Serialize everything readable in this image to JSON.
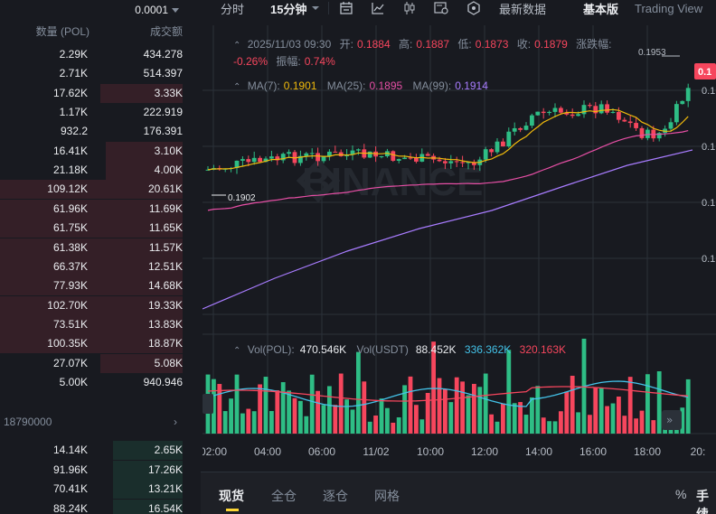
{
  "orderbook": {
    "precision": "0.0001",
    "col_amount": "数量 (POL)",
    "col_total": "成交额",
    "asks": [
      {
        "amount": "2.29K",
        "total": "434.278",
        "depth": 0.0
      },
      {
        "amount": "2.71K",
        "total": "514.397",
        "depth": 0.0
      },
      {
        "amount": "17.62K",
        "total": "3.33K",
        "depth": 0.45
      },
      {
        "amount": "1.17K",
        "total": "222.919",
        "depth": 0.0
      },
      {
        "amount": "932.2",
        "total": "176.391",
        "depth": 0.0
      },
      {
        "amount": "16.41K",
        "total": "3.10K",
        "depth": 0.42
      },
      {
        "amount": "21.18K",
        "total": "4.00K",
        "depth": 0.42
      },
      {
        "amount": "109.12K",
        "total": "20.61K",
        "depth": 1.0
      },
      {
        "amount": "61.96K",
        "total": "11.69K",
        "depth": 1.0
      },
      {
        "amount": "61.75K",
        "total": "11.65K",
        "depth": 1.0
      },
      {
        "amount": "61.38K",
        "total": "11.57K",
        "depth": 1.0
      },
      {
        "amount": "66.37K",
        "total": "12.51K",
        "depth": 1.0
      },
      {
        "amount": "77.93K",
        "total": "14.68K",
        "depth": 1.0
      },
      {
        "amount": "102.70K",
        "total": "19.33K",
        "depth": 1.0
      },
      {
        "amount": "73.51K",
        "total": "13.83K",
        "depth": 1.0
      },
      {
        "amount": "100.35K",
        "total": "18.87K",
        "depth": 1.0
      },
      {
        "amount": "27.07K",
        "total": "5.08K",
        "depth": 0.45
      },
      {
        "amount": "5.00K",
        "total": "940.946",
        "depth": 0.0
      }
    ],
    "mid_price": "18790000",
    "bids": [
      {
        "amount": "14.14K",
        "total": "2.65K",
        "depth": 0.38
      },
      {
        "amount": "91.96K",
        "total": "17.26K",
        "depth": 0.38
      },
      {
        "amount": "70.41K",
        "total": "13.21K",
        "depth": 0.38
      },
      {
        "amount": "88.24K",
        "total": "16.54K",
        "depth": 0.38
      }
    ]
  },
  "toolbar": {
    "time_label": "分时",
    "interval": "15分钟",
    "latest_price_label": "最新数据",
    "view_basic": "基本版",
    "view_tv": "Trading View"
  },
  "chart": {
    "ohlc": {
      "time": "2025/11/03 09:30",
      "open_label": "开:",
      "open": "0.1884",
      "high_label": "高:",
      "high": "0.1887",
      "low_label": "低:",
      "low": "0.1873",
      "close_label": "收:",
      "close": "0.1879",
      "change_label": "涨跌幅:",
      "change": "-0.26%",
      "amp_label": "振幅:",
      "amp": "0.74%"
    },
    "ma": [
      {
        "label": "MA(7):",
        "value": "0.1901",
        "color": "#f0b90b"
      },
      {
        "label": "MA(25):",
        "value": "0.1895",
        "color": "#e64fa5"
      },
      {
        "label": "MA(99):",
        "value": "0.1914",
        "color": "#a87cff"
      }
    ],
    "volume": {
      "pol_label": "Vol(POL):",
      "pol": "470.546K",
      "usdt_label": "Vol(USDT)",
      "usdt": "88.452K",
      "ma1": "336.362K",
      "ma1_color": "#43c2e8",
      "ma2": "320.163K",
      "ma2_color": "#f6465d"
    },
    "hi_mark": "0.1953",
    "lo_mark": "0.1902",
    "price_tag": "0.1",
    "axis_price_labels": [
      "0.1",
      "0.1",
      "0.1",
      "0.1"
    ],
    "x_labels": [
      "02:00",
      "04:00",
      "06:00",
      "11/02",
      "10:00",
      "12:00",
      "14:00",
      "16:00",
      "18:00",
      "20:"
    ],
    "watermark": "BINANCE",
    "colors": {
      "up": "#2ebd85",
      "down": "#f6465d",
      "grid": "#2b3139"
    }
  },
  "bottom_tabs": {
    "tabs": [
      "现货",
      "全仓",
      "逐仓",
      "网格"
    ],
    "percent": "%",
    "fee": "手续"
  },
  "chart_data": {
    "type": "candlestick",
    "interval": "15分钟",
    "x_ticks": [
      "02:00",
      "04:00",
      "06:00",
      "11/02",
      "10:00",
      "12:00",
      "14:00",
      "16:00",
      "18:00",
      "20:"
    ],
    "last_candle": {
      "time": "2025/11/03 09:30",
      "open": 0.1884,
      "high": 0.1887,
      "low": 0.1873,
      "close": 0.1879
    },
    "marked_high": 0.1953,
    "marked_low": 0.1902,
    "ma": {
      "MA(7)": 0.1901,
      "MA(25)": 0.1895,
      "MA(99)": 0.1914
    },
    "volume": {
      "Vol(POL)": "470.546K",
      "Vol(USDT)": "88.452K",
      "MA1": "336.362K",
      "MA2": "320.163K"
    }
  }
}
